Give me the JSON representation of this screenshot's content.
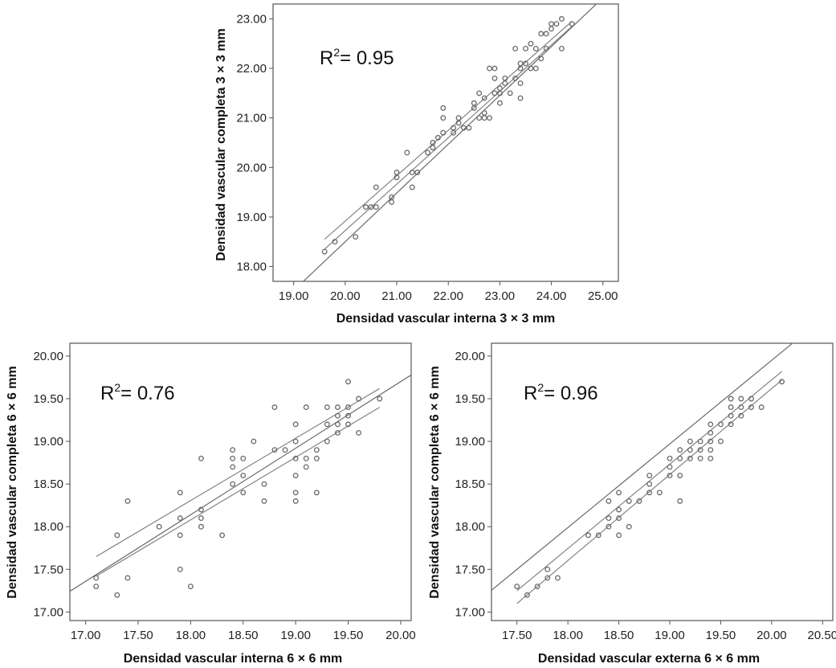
{
  "chart_data": [
    {
      "type": "scatter",
      "xlabel": "Densidad vascular interna 3 × 3 mm",
      "ylabel": "Densidad vascular completa 3 × 3 mm",
      "annotation": {
        "prefix": "R",
        "sup": "2",
        "suffix": "= 0.95"
      },
      "xlim": [
        18.6,
        25.3
      ],
      "ylim": [
        17.7,
        23.3
      ],
      "xticks": [
        "19.00",
        "20.00",
        "21.00",
        "22.00",
        "23.00",
        "24.00",
        "25.00"
      ],
      "yticks": [
        "18.00",
        "19.00",
        "20.00",
        "21.00",
        "22.00",
        "23.00"
      ],
      "fit": {
        "x1": 18.6,
        "x2": 25.3,
        "slope": 0.985,
        "intercept": -1.2
      },
      "ci": {
        "x1": 19.6,
        "x2": 24.4,
        "lower": [
          18.35,
          22.85
        ],
        "upper": [
          18.55,
          22.95
        ]
      },
      "points": [
        [
          19.6,
          18.3
        ],
        [
          19.8,
          18.5
        ],
        [
          20.2,
          18.6
        ],
        [
          20.4,
          19.2
        ],
        [
          20.5,
          19.2
        ],
        [
          20.6,
          19.2
        ],
        [
          20.6,
          19.6
        ],
        [
          20.9,
          19.3
        ],
        [
          20.9,
          19.4
        ],
        [
          21.0,
          19.8
        ],
        [
          21.0,
          19.9
        ],
        [
          21.2,
          20.3
        ],
        [
          21.3,
          19.6
        ],
        [
          21.3,
          19.9
        ],
        [
          21.4,
          19.9
        ],
        [
          21.6,
          20.3
        ],
        [
          21.7,
          20.4
        ],
        [
          21.7,
          20.5
        ],
        [
          21.8,
          20.6
        ],
        [
          21.9,
          20.7
        ],
        [
          21.9,
          21.0
        ],
        [
          21.9,
          21.2
        ],
        [
          22.1,
          20.7
        ],
        [
          22.1,
          20.8
        ],
        [
          22.2,
          20.9
        ],
        [
          22.2,
          21.0
        ],
        [
          22.3,
          20.8
        ],
        [
          22.4,
          20.8
        ],
        [
          22.5,
          21.2
        ],
        [
          22.5,
          21.3
        ],
        [
          22.6,
          21.0
        ],
        [
          22.6,
          21.5
        ],
        [
          22.7,
          21.0
        ],
        [
          22.7,
          21.1
        ],
        [
          22.7,
          21.4
        ],
        [
          22.8,
          21.0
        ],
        [
          22.8,
          22.0
        ],
        [
          22.9,
          21.5
        ],
        [
          22.9,
          21.8
        ],
        [
          22.9,
          22.0
        ],
        [
          23.0,
          21.3
        ],
        [
          23.0,
          21.5
        ],
        [
          23.0,
          21.6
        ],
        [
          23.1,
          21.7
        ],
        [
          23.1,
          21.8
        ],
        [
          23.2,
          21.5
        ],
        [
          23.3,
          21.8
        ],
        [
          23.3,
          22.4
        ],
        [
          23.4,
          21.4
        ],
        [
          23.4,
          21.7
        ],
        [
          23.4,
          22.0
        ],
        [
          23.4,
          22.1
        ],
        [
          23.5,
          22.1
        ],
        [
          23.5,
          22.4
        ],
        [
          23.6,
          22.0
        ],
        [
          23.6,
          22.5
        ],
        [
          23.7,
          22.0
        ],
        [
          23.7,
          22.4
        ],
        [
          23.8,
          22.2
        ],
        [
          23.8,
          22.7
        ],
        [
          23.9,
          22.4
        ],
        [
          23.9,
          22.7
        ],
        [
          24.0,
          22.8
        ],
        [
          24.0,
          22.9
        ],
        [
          24.1,
          22.9
        ],
        [
          24.2,
          22.4
        ],
        [
          24.2,
          23.0
        ],
        [
          24.4,
          22.9
        ]
      ]
    },
    {
      "type": "scatter",
      "xlabel": "Densidad vascular interna 6 × 6 mm",
      "ylabel": "Densidad vascular completa 6 × 6 mm",
      "annotation": {
        "prefix": "R",
        "sup": "2",
        "suffix": "= 0.76"
      },
      "xlim": [
        16.85,
        20.1
      ],
      "ylim": [
        16.9,
        20.15
      ],
      "xticks": [
        "17.00",
        "17.50",
        "18.00",
        "18.50",
        "19.00",
        "19.50",
        "20.00"
      ],
      "yticks": [
        "17.00",
        "17.50",
        "18.00",
        "18.50",
        "19.00",
        "19.50",
        "20.00"
      ],
      "fit": {
        "x1": 16.85,
        "x2": 20.1,
        "slope": 0.78,
        "intercept": 4.1
      },
      "ci": {
        "x1": 17.1,
        "x2": 19.8,
        "lower": [
          17.42,
          19.4
        ],
        "upper": [
          17.65,
          19.62
        ]
      },
      "points": [
        [
          17.1,
          17.4
        ],
        [
          17.1,
          17.3
        ],
        [
          17.3,
          17.9
        ],
        [
          17.3,
          17.2
        ],
        [
          17.4,
          18.3
        ],
        [
          17.4,
          17.4
        ],
        [
          17.7,
          18.0
        ],
        [
          17.9,
          18.4
        ],
        [
          17.9,
          18.1
        ],
        [
          17.9,
          17.9
        ],
        [
          17.9,
          17.5
        ],
        [
          18.0,
          17.3
        ],
        [
          18.1,
          18.8
        ],
        [
          18.1,
          18.2
        ],
        [
          18.1,
          18.1
        ],
        [
          18.1,
          18.0
        ],
        [
          18.3,
          17.9
        ],
        [
          18.4,
          18.9
        ],
        [
          18.4,
          18.8
        ],
        [
          18.4,
          18.7
        ],
        [
          18.4,
          18.5
        ],
        [
          18.5,
          18.8
        ],
        [
          18.5,
          18.6
        ],
        [
          18.5,
          18.4
        ],
        [
          18.6,
          19.0
        ],
        [
          18.7,
          18.5
        ],
        [
          18.7,
          18.3
        ],
        [
          18.8,
          19.4
        ],
        [
          18.8,
          18.9
        ],
        [
          18.9,
          18.9
        ],
        [
          19.0,
          19.2
        ],
        [
          19.0,
          19.0
        ],
        [
          19.0,
          18.8
        ],
        [
          19.0,
          18.6
        ],
        [
          19.0,
          18.4
        ],
        [
          19.0,
          18.3
        ],
        [
          19.1,
          19.4
        ],
        [
          19.1,
          18.8
        ],
        [
          19.1,
          18.7
        ],
        [
          19.2,
          18.9
        ],
        [
          19.2,
          18.8
        ],
        [
          19.2,
          18.4
        ],
        [
          19.3,
          19.4
        ],
        [
          19.3,
          19.2
        ],
        [
          19.3,
          19.0
        ],
        [
          19.4,
          19.4
        ],
        [
          19.4,
          19.3
        ],
        [
          19.4,
          19.2
        ],
        [
          19.4,
          19.1
        ],
        [
          19.5,
          19.7
        ],
        [
          19.5,
          19.4
        ],
        [
          19.5,
          19.3
        ],
        [
          19.5,
          19.2
        ],
        [
          19.6,
          19.5
        ],
        [
          19.6,
          19.1
        ],
        [
          19.8,
          19.5
        ]
      ]
    },
    {
      "type": "scatter",
      "xlabel": "Densidad vascular externa 6 × 6 mm",
      "ylabel": "Densidad vascular completa 6 × 6 mm",
      "annotation": {
        "prefix": "R",
        "sup": "2",
        "suffix": "= 0.96"
      },
      "xlim": [
        17.25,
        20.6
      ],
      "ylim": [
        16.9,
        20.15
      ],
      "xticks": [
        "17.50",
        "18.00",
        "18.50",
        "19.00",
        "19.50",
        "20.00",
        "20.50"
      ],
      "yticks": [
        "17.00",
        "17.50",
        "18.00",
        "18.50",
        "19.00",
        "19.50",
        "20.00"
      ],
      "fit": {
        "x1": 17.25,
        "x2": 20.6,
        "slope": 0.98,
        "intercept": 0.35
      },
      "ci": {
        "x1": 17.5,
        "x2": 20.1,
        "lower": [
          17.1,
          19.72
        ],
        "upper": [
          17.25,
          19.82
        ]
      },
      "points": [
        [
          17.5,
          17.3
        ],
        [
          17.6,
          17.2
        ],
        [
          17.7,
          17.3
        ],
        [
          17.8,
          17.5
        ],
        [
          17.8,
          17.4
        ],
        [
          17.9,
          17.4
        ],
        [
          18.2,
          17.9
        ],
        [
          18.3,
          17.9
        ],
        [
          18.4,
          18.3
        ],
        [
          18.4,
          18.1
        ],
        [
          18.4,
          18.0
        ],
        [
          18.5,
          18.4
        ],
        [
          18.5,
          18.2
        ],
        [
          18.5,
          18.1
        ],
        [
          18.5,
          17.9
        ],
        [
          18.6,
          18.3
        ],
        [
          18.6,
          18.0
        ],
        [
          18.7,
          18.3
        ],
        [
          18.8,
          18.6
        ],
        [
          18.8,
          18.5
        ],
        [
          18.8,
          18.4
        ],
        [
          18.9,
          18.4
        ],
        [
          19.0,
          18.8
        ],
        [
          19.0,
          18.7
        ],
        [
          19.0,
          18.6
        ],
        [
          19.1,
          18.9
        ],
        [
          19.1,
          18.8
        ],
        [
          19.1,
          18.6
        ],
        [
          19.1,
          18.3
        ],
        [
          19.2,
          19.0
        ],
        [
          19.2,
          18.9
        ],
        [
          19.2,
          18.8
        ],
        [
          19.3,
          19.0
        ],
        [
          19.3,
          18.9
        ],
        [
          19.3,
          18.8
        ],
        [
          19.4,
          19.2
        ],
        [
          19.4,
          19.1
        ],
        [
          19.4,
          19.0
        ],
        [
          19.4,
          18.9
        ],
        [
          19.4,
          18.8
        ],
        [
          19.5,
          19.2
        ],
        [
          19.5,
          19.0
        ],
        [
          19.6,
          19.5
        ],
        [
          19.6,
          19.4
        ],
        [
          19.6,
          19.3
        ],
        [
          19.6,
          19.2
        ],
        [
          19.7,
          19.5
        ],
        [
          19.7,
          19.4
        ],
        [
          19.7,
          19.3
        ],
        [
          19.8,
          19.5
        ],
        [
          19.8,
          19.4
        ],
        [
          19.9,
          19.4
        ],
        [
          20.1,
          19.7
        ]
      ]
    }
  ]
}
